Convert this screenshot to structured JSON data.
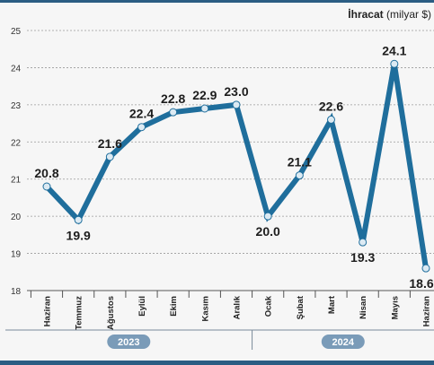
{
  "chart_data": {
    "type": "line",
    "title": "",
    "ylabel_bold": "İhracat",
    "ylabel_rest": " (milyar $)",
    "ylim": [
      18,
      25
    ],
    "yticks": [
      18,
      19,
      20,
      21,
      22,
      23,
      24,
      25
    ],
    "grid": true,
    "categories": [
      "Haziran",
      "Temmuz",
      "Ağustos",
      "Eylül",
      "Ekim",
      "Kasım",
      "Aralık",
      "Ocak",
      "Şubat",
      "Mart",
      "Nisan",
      "Mayıs",
      "Haziran"
    ],
    "series": [
      {
        "values": [
          20.8,
          19.9,
          21.6,
          22.4,
          22.8,
          22.9,
          23.0,
          20.0,
          21.1,
          22.6,
          19.3,
          24.1,
          18.6
        ],
        "data_labels": [
          "20.8",
          "19.9",
          "21.6",
          "22.4",
          "22.8",
          "22.9",
          "23.0",
          "20.0",
          "21.1",
          "22.6",
          "19.3",
          "24.1",
          "18.6"
        ]
      }
    ],
    "year_groups": [
      {
        "label": "2023",
        "span": [
          0,
          6
        ]
      },
      {
        "label": "2024",
        "span": [
          7,
          12
        ]
      }
    ],
    "line_color": "#1f6e9c",
    "marker_fill": "#dceaf3",
    "year_badge_color": "#7a9bb8"
  }
}
